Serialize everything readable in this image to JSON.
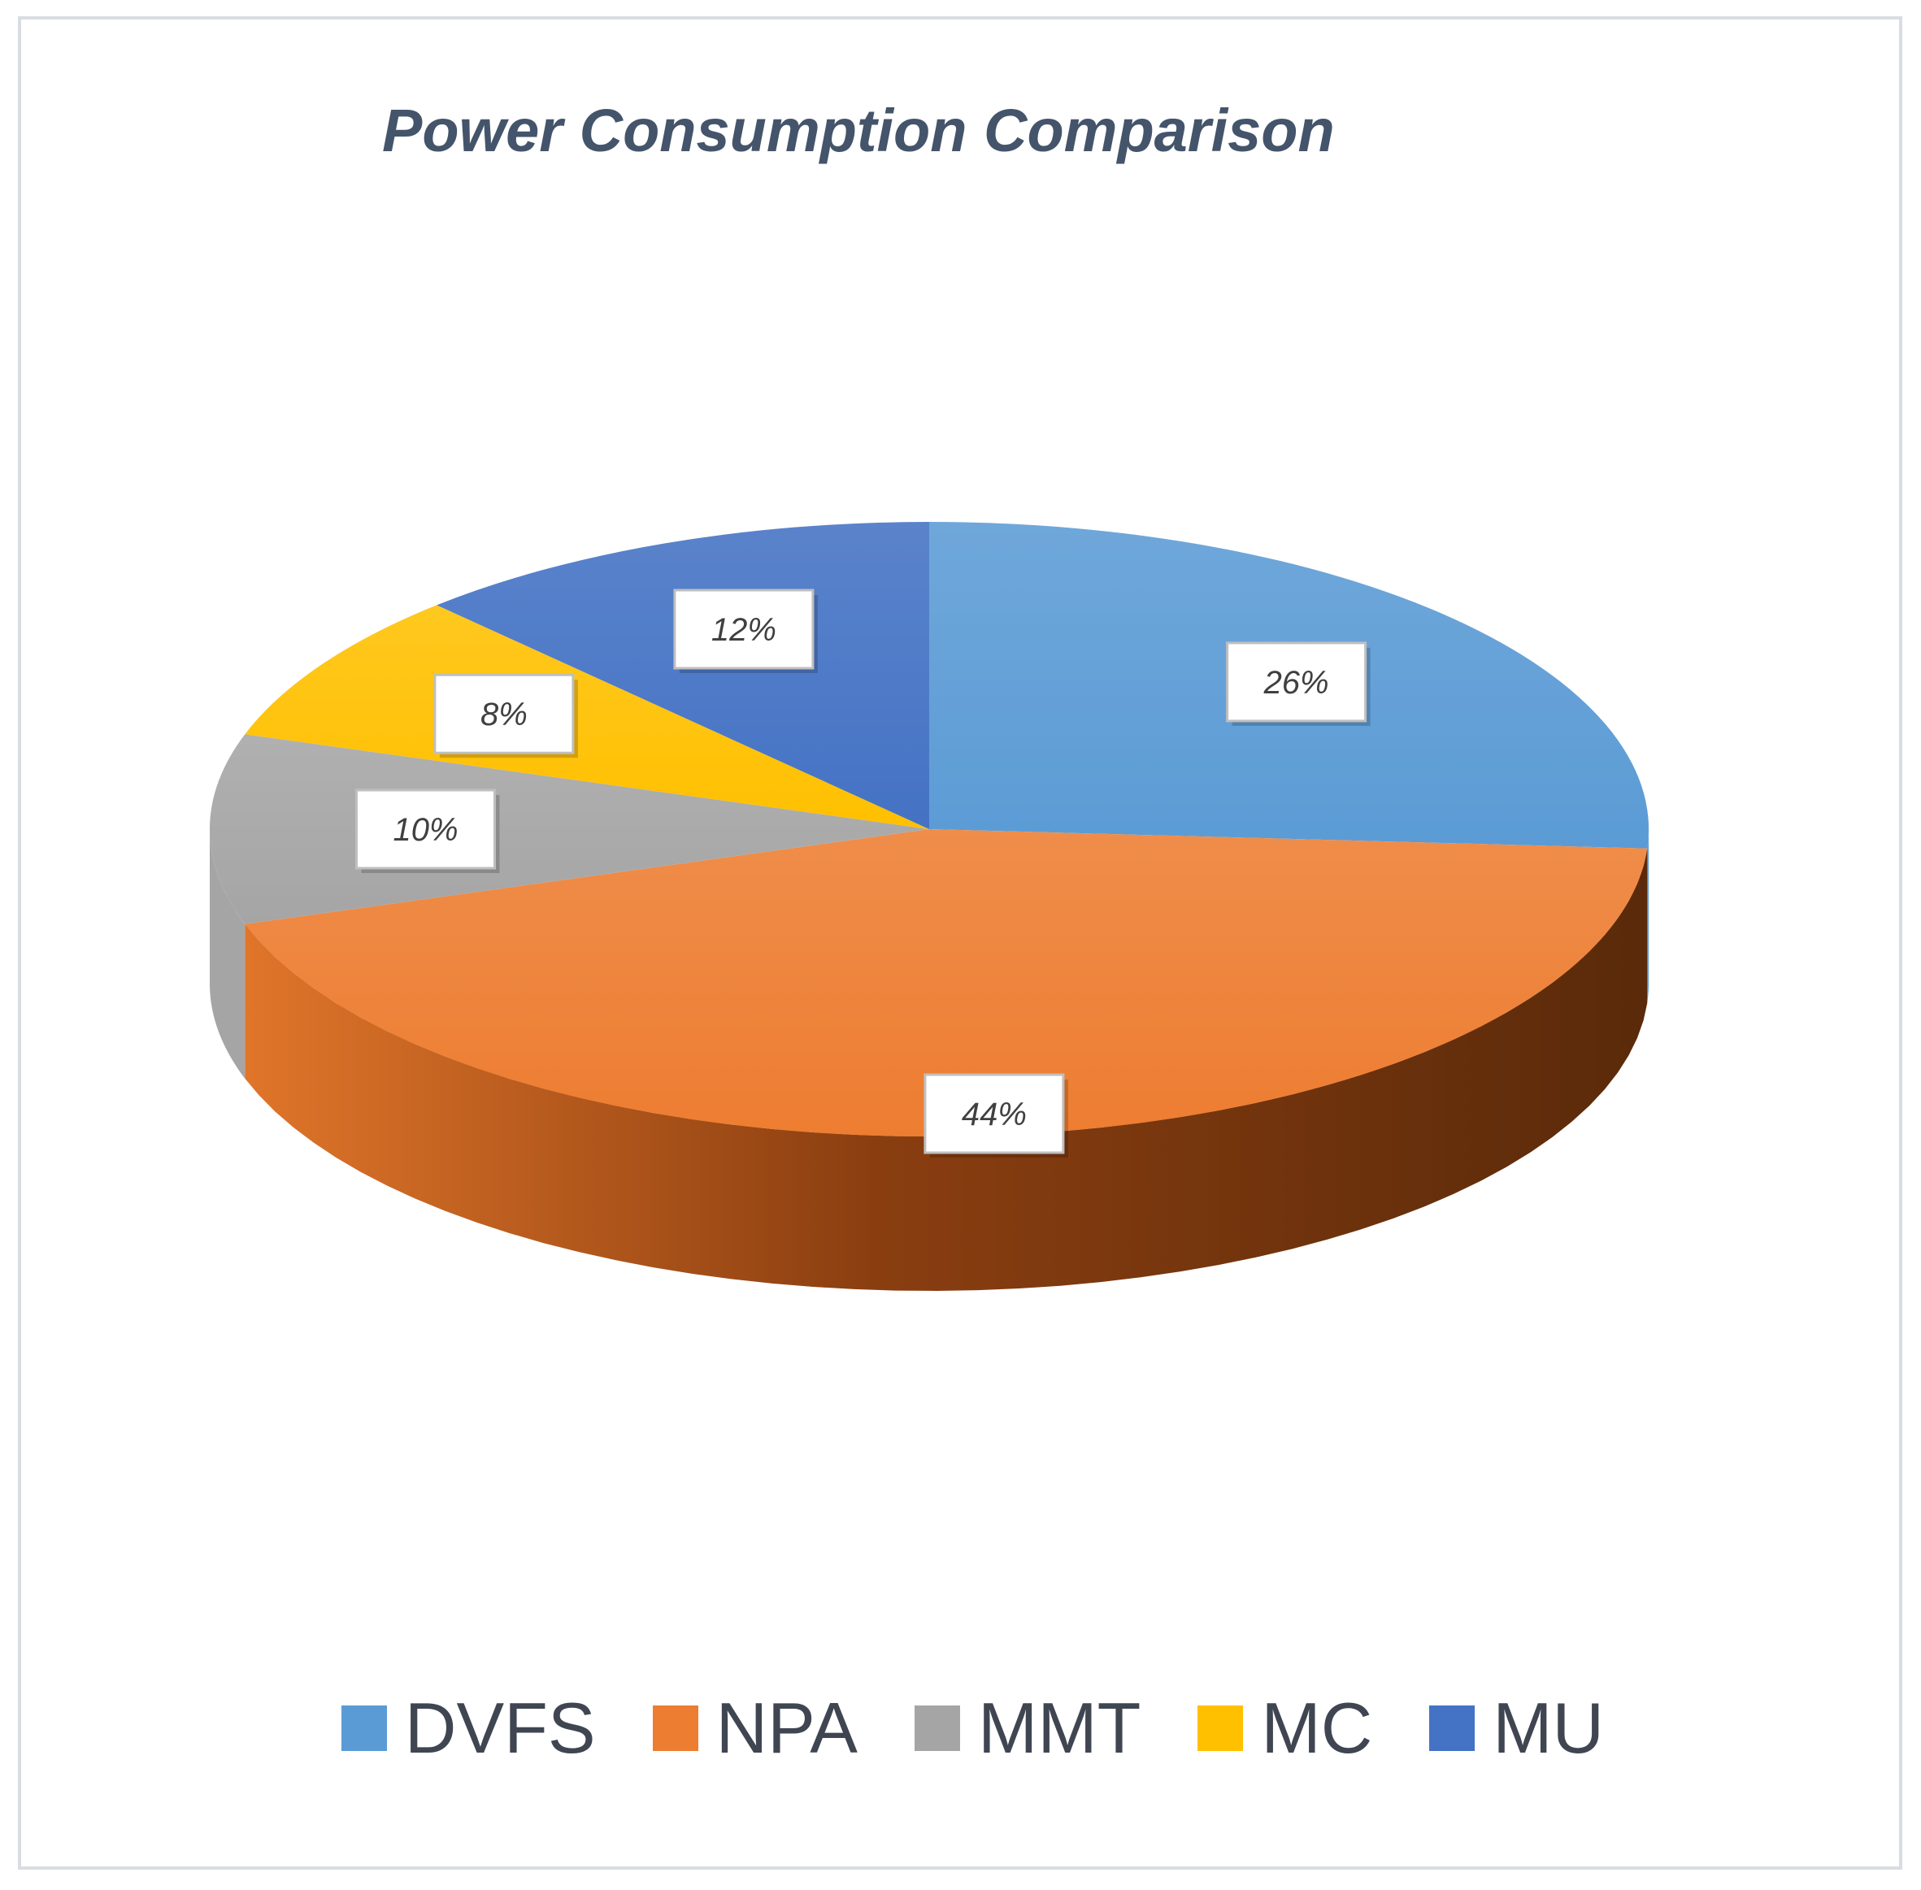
{
  "chart_data": {
    "type": "pie",
    "title": "Power Consumption Comparison",
    "categories": [
      "DVFS",
      "NPA",
      "MMT",
      "MC",
      "MU"
    ],
    "values": [
      26,
      44,
      10,
      8,
      12
    ],
    "value_labels": [
      "26%",
      "44%",
      "10%",
      "8%",
      "12%"
    ],
    "colors": [
      "#5b9bd5",
      "#ed7d31",
      "#a5a5a5",
      "#ffc000",
      "#4472c4"
    ],
    "unit": "%",
    "style": "3d",
    "legend_position": "bottom"
  },
  "legend": {
    "items": [
      {
        "label": "DVFS",
        "color": "#5b9bd5"
      },
      {
        "label": "NPA",
        "color": "#ed7d31"
      },
      {
        "label": "MMT",
        "color": "#a5a5a5"
      },
      {
        "label": "MC",
        "color": "#ffc000"
      },
      {
        "label": "MU",
        "color": "#4472c4"
      }
    ]
  }
}
